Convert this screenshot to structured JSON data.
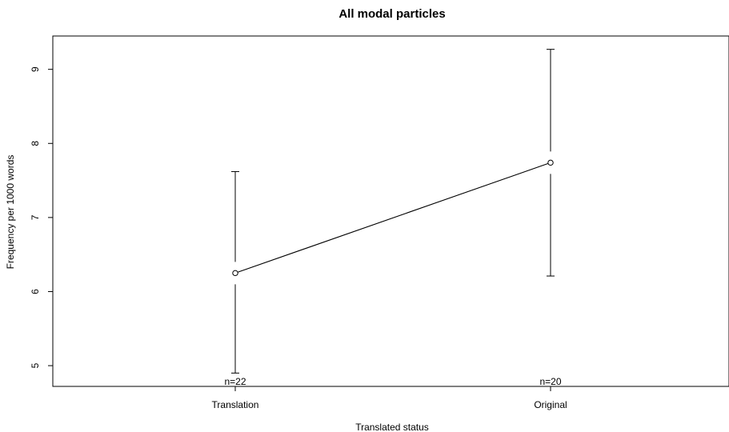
{
  "chart_data": {
    "type": "line",
    "title": "All modal particles",
    "xlabel": "Translated status",
    "ylabel": "Frequency per 1000 words",
    "categories": [
      "Translation",
      "Original"
    ],
    "series": [
      {
        "values": [
          6.25,
          7.74
        ],
        "error_low": [
          4.9,
          6.21
        ],
        "error_high": [
          7.62,
          9.27
        ]
      }
    ],
    "annotations": [
      "n=22",
      "n=20"
    ],
    "y_ticks": [
      5,
      6,
      7,
      8,
      9
    ],
    "y_tick_labels": [
      "5",
      "6",
      "7",
      "8",
      "9"
    ],
    "ylim": [
      4.72,
      9.45
    ],
    "grid": false,
    "legend": "none"
  }
}
